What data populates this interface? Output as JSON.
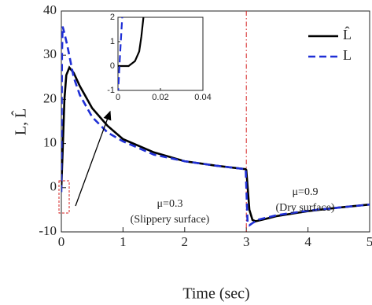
{
  "chart_data": [
    {
      "type": "line",
      "xlabel": "Time (sec)",
      "ylabel": "L, L̂",
      "xlim": [
        0,
        5
      ],
      "ylim": [
        -10,
        40
      ],
      "xticks": [
        0,
        1,
        2,
        3,
        4,
        5
      ],
      "yticks": [
        -10,
        0,
        10,
        20,
        30,
        40
      ],
      "legend": "upper right",
      "vline": {
        "x": 3,
        "color": "#d62020"
      },
      "annotations": [
        "μ=0.3",
        "(Slippery surface)",
        "μ=0.9",
        "(Dry surface)"
      ],
      "series": [
        {
          "name": "L̂",
          "color": "#000000",
          "dash": "solid",
          "x": [
            0,
            0.02,
            0.05,
            0.08,
            0.13,
            0.2,
            0.3,
            0.5,
            0.75,
            1,
            1.5,
            2,
            2.5,
            2.99,
            3.0,
            3.05,
            3.1,
            3.15,
            3.3,
            3.5,
            4,
            4.5,
            5
          ],
          "values": [
            0,
            8,
            20,
            25.5,
            27.2,
            26,
            23,
            18,
            14,
            11,
            8,
            6,
            5,
            4.2,
            4,
            -5,
            -7.3,
            -7.6,
            -7.1,
            -6.4,
            -5.3,
            -4.5,
            -3.8
          ]
        },
        {
          "name": "L",
          "color": "#1f2fd6",
          "dash": "dashed",
          "x": [
            0,
            0.01,
            0.02,
            0.05,
            0.1,
            0.2,
            0.3,
            0.5,
            0.75,
            1,
            1.5,
            2,
            2.5,
            2.99,
            3.02,
            3.05,
            3.1,
            3.2,
            3.5,
            4,
            4.5,
            5
          ],
          "values": [
            -1,
            30,
            36.5,
            35,
            32,
            25,
            21,
            16,
            12.5,
            10.5,
            7.5,
            6,
            5,
            4.2,
            -8,
            -8.5,
            -8,
            -7.2,
            -6.2,
            -5.2,
            -4.5,
            -3.8
          ]
        }
      ]
    },
    {
      "type": "line",
      "xlim": [
        0,
        0.04
      ],
      "ylim": [
        -1,
        2
      ],
      "xticks": [
        0,
        0.02,
        0.04
      ],
      "yticks": [
        -1,
        0,
        1,
        2
      ],
      "series": [
        {
          "color": "#000000",
          "dash": "solid",
          "x": [
            0,
            0.005,
            0.008,
            0.01,
            0.011,
            0.012,
            0.013
          ],
          "values": [
            0,
            0,
            0.2,
            0.6,
            1.2,
            2,
            2.5
          ]
        },
        {
          "color": "#1f2fd6",
          "dash": "dashed",
          "x": [
            0,
            0.001,
            0.002,
            0.003
          ],
          "values": [
            -1.2,
            0.5,
            2,
            3
          ]
        }
      ]
    }
  ]
}
